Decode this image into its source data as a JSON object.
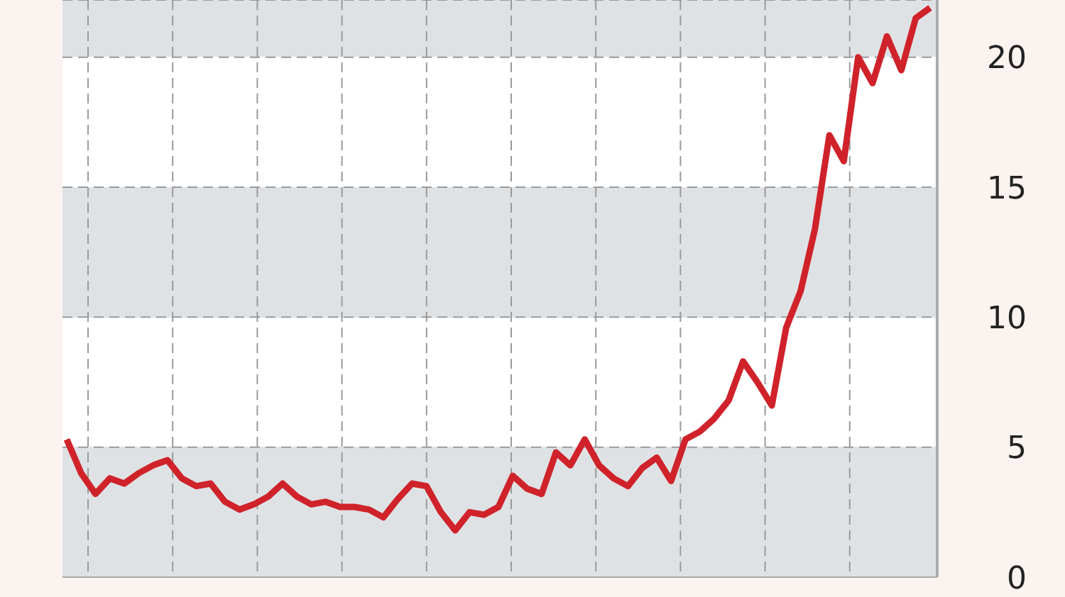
{
  "chart_data": {
    "type": "line",
    "categories": [
      null,
      null,
      null,
      null,
      null,
      null,
      null,
      null,
      null,
      null,
      null,
      null,
      null,
      null,
      null,
      null,
      null,
      null,
      null,
      null,
      null,
      null,
      null,
      null,
      null,
      null,
      null,
      null,
      null,
      null,
      null,
      null,
      null,
      null,
      null,
      null,
      null,
      null,
      null,
      null,
      null,
      null,
      null,
      null,
      null,
      null,
      null,
      null,
      null,
      null,
      null,
      null,
      null,
      null,
      null,
      null,
      null,
      null,
      null,
      null,
      null
    ],
    "series": [
      {
        "color": "#d0222a",
        "values": [
          5.3,
          4.0,
          3.2,
          3.8,
          3.6,
          4.0,
          4.3,
          4.5,
          3.8,
          3.5,
          3.6,
          2.9,
          2.6,
          2.8,
          3.1,
          3.6,
          3.1,
          2.8,
          2.9,
          2.7,
          2.7,
          2.6,
          2.3,
          3.0,
          3.6,
          3.5,
          2.5,
          1.8,
          2.5,
          2.4,
          2.7,
          3.9,
          3.4,
          3.2,
          4.8,
          4.3,
          5.3,
          4.3,
          3.8,
          3.5,
          4.2,
          4.6,
          3.7,
          5.3,
          5.6,
          6.1,
          6.8,
          8.3,
          7.5,
          6.6,
          9.6,
          11.0,
          13.4,
          17.0,
          16.0,
          20.0,
          19.0,
          20.8,
          19.5,
          21.5,
          21.9
        ]
      }
    ],
    "ylim": [
      0,
      22.2
    ],
    "yticks": [
      0,
      5,
      10,
      15,
      20
    ],
    "grid": true,
    "marker": "none",
    "line_style": "solid"
  }
}
